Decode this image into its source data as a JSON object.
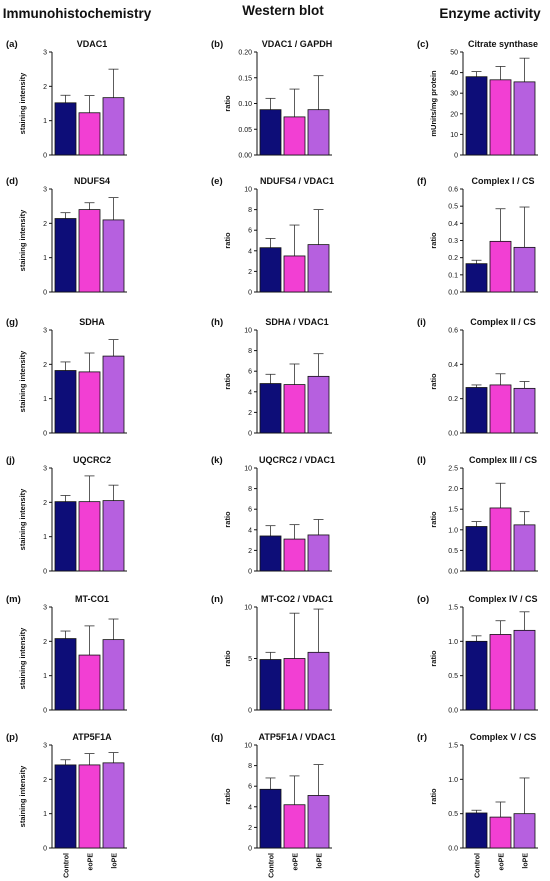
{
  "figure": {
    "columns": [
      "Immunohistochemistry",
      "Western blot",
      "Enzyme activity"
    ],
    "categories": [
      "Control",
      "eoPE",
      "loPE"
    ],
    "colors": {
      "Control": "#0d0d78",
      "eoPE": "#f23fd3",
      "loPE": "#b660df"
    }
  },
  "chart_data": [
    {
      "type": "bar",
      "panel": "(a)",
      "title": "VDAC1",
      "ylabel": "staining intensity",
      "categories": [
        "Control",
        "eoPE",
        "loPE"
      ],
      "values": [
        1.52,
        1.23,
        1.67
      ],
      "error": [
        0.22,
        0.5,
        0.83
      ],
      "ylim": [
        0,
        3
      ],
      "yticks": [
        "0",
        "1",
        "2",
        "3"
      ]
    },
    {
      "type": "bar",
      "panel": "(b)",
      "title": "VDAC1  /  GAPDH",
      "ylabel": "ratio",
      "categories": [
        "Control",
        "eoPE",
        "loPE"
      ],
      "values": [
        0.088,
        0.074,
        0.088
      ],
      "error": [
        0.022,
        0.054,
        0.066
      ],
      "ylim": [
        0,
        0.2
      ],
      "yticks": [
        "0.00",
        "0.05",
        "0.10",
        "0.15",
        "0.20"
      ]
    },
    {
      "type": "bar",
      "panel": "(c)",
      "title": "Citrate synthase",
      "ylabel": "mUnits/mg protein",
      "categories": [
        "Control",
        "eoPE",
        "loPE"
      ],
      "values": [
        38,
        36.5,
        35.5
      ],
      "error": [
        2.5,
        6.5,
        11.5
      ],
      "ylim": [
        0,
        50
      ],
      "yticks": [
        "0",
        "10",
        "20",
        "30",
        "40",
        "50"
      ]
    },
    {
      "type": "bar",
      "panel": "(d)",
      "title": "NDUFS4",
      "ylabel": "staining intensity",
      "categories": [
        "Control",
        "eoPE",
        "loPE"
      ],
      "values": [
        2.14,
        2.4,
        2.1
      ],
      "error": [
        0.17,
        0.2,
        0.65
      ],
      "ylim": [
        0,
        3
      ],
      "yticks": [
        "0",
        "1",
        "2",
        "3"
      ]
    },
    {
      "type": "bar",
      "panel": "(e)",
      "title": "NDUFS4 / VDAC1",
      "ylabel": "ratio",
      "categories": [
        "Control",
        "eoPE",
        "loPE"
      ],
      "values": [
        4.3,
        3.5,
        4.6
      ],
      "error": [
        0.9,
        3.0,
        3.4
      ],
      "ylim": [
        0,
        10
      ],
      "yticks": [
        "0",
        "2",
        "4",
        "6",
        "8",
        "10"
      ]
    },
    {
      "type": "bar",
      "panel": "(f)",
      "title": "Complex I / CS",
      "ylabel": "ratio",
      "categories": [
        "Control",
        "eoPE",
        "loPE"
      ],
      "values": [
        0.165,
        0.295,
        0.26
      ],
      "error": [
        0.02,
        0.19,
        0.235
      ],
      "ylim": [
        0,
        0.6
      ],
      "yticks": [
        "0.0",
        "0.1",
        "0.2",
        "0.3",
        "0.4",
        "0.5",
        "0.6"
      ]
    },
    {
      "type": "bar",
      "panel": "(g)",
      "title": "SDHA",
      "ylabel": "staining intensity",
      "categories": [
        "Control",
        "eoPE",
        "loPE"
      ],
      "values": [
        1.82,
        1.78,
        2.24
      ],
      "error": [
        0.25,
        0.55,
        0.48
      ],
      "ylim": [
        0,
        3
      ],
      "yticks": [
        "0",
        "1",
        "2",
        "3"
      ]
    },
    {
      "type": "bar",
      "panel": "(h)",
      "title": "SDHA / VDAC1",
      "ylabel": "ratio",
      "categories": [
        "Control",
        "eoPE",
        "loPE"
      ],
      "values": [
        4.8,
        4.7,
        5.5
      ],
      "error": [
        0.9,
        2.0,
        2.2
      ],
      "ylim": [
        0,
        10
      ],
      "yticks": [
        "0",
        "2",
        "4",
        "6",
        "8",
        "10"
      ]
    },
    {
      "type": "bar",
      "panel": "(i)",
      "title": "Complex II / CS",
      "ylabel": "ratio",
      "categories": [
        "Control",
        "eoPE",
        "loPE"
      ],
      "values": [
        0.265,
        0.28,
        0.26
      ],
      "error": [
        0.015,
        0.065,
        0.04
      ],
      "ylim": [
        0,
        0.6
      ],
      "yticks": [
        "0.0",
        "0.2",
        "0.4",
        "0.6"
      ]
    },
    {
      "type": "bar",
      "panel": "(j)",
      "title": "UQCRC2",
      "ylabel": "staining intensity",
      "categories": [
        "Control",
        "eoPE",
        "loPE"
      ],
      "values": [
        2.02,
        2.02,
        2.05
      ],
      "error": [
        0.18,
        0.75,
        0.45
      ],
      "ylim": [
        0,
        3
      ],
      "yticks": [
        "0",
        "1",
        "2",
        "3"
      ]
    },
    {
      "type": "bar",
      "panel": "(k)",
      "title": "UQCRC2 / VDAC1",
      "ylabel": "ratio",
      "categories": [
        "Control",
        "eoPE",
        "loPE"
      ],
      "values": [
        3.4,
        3.1,
        3.5
      ],
      "error": [
        1.0,
        1.4,
        1.5
      ],
      "ylim": [
        0,
        10
      ],
      "yticks": [
        "0",
        "2",
        "4",
        "6",
        "8",
        "10"
      ]
    },
    {
      "type": "bar",
      "panel": "(l)",
      "title": "Complex III / CS",
      "ylabel": "ratio",
      "categories": [
        "Control",
        "eoPE",
        "loPE"
      ],
      "values": [
        1.08,
        1.53,
        1.12
      ],
      "error": [
        0.12,
        0.6,
        0.32
      ],
      "ylim": [
        0,
        2.5
      ],
      "yticks": [
        "0.0",
        "0.5",
        "1.0",
        "1.5",
        "2.0",
        "2.5"
      ]
    },
    {
      "type": "bar",
      "panel": "(m)",
      "title": "MT-CO1",
      "ylabel": "staining intensity",
      "categories": [
        "Control",
        "eoPE",
        "loPE"
      ],
      "values": [
        2.08,
        1.6,
        2.05
      ],
      "error": [
        0.22,
        0.85,
        0.6
      ],
      "ylim": [
        0,
        3
      ],
      "yticks": [
        "0",
        "1",
        "2",
        "3"
      ]
    },
    {
      "type": "bar",
      "panel": "(n)",
      "title": "MT-CO2 / VDAC1",
      "ylabel": "ratio",
      "categories": [
        "Control",
        "eoPE",
        "loPE"
      ],
      "values": [
        4.9,
        5.0,
        5.6
      ],
      "error": [
        0.7,
        4.4,
        4.2
      ],
      "ylim": [
        0,
        10
      ],
      "yticks": [
        "0",
        "5",
        "10"
      ]
    },
    {
      "type": "bar",
      "panel": "(o)",
      "title": "Complex IV / CS",
      "ylabel": "ratio",
      "categories": [
        "Control",
        "eoPE",
        "loPE"
      ],
      "values": [
        1.0,
        1.1,
        1.16
      ],
      "error": [
        0.08,
        0.2,
        0.27
      ],
      "ylim": [
        0,
        1.5
      ],
      "yticks": [
        "0.0",
        "0.5",
        "1.0",
        "1.5"
      ]
    },
    {
      "type": "bar",
      "panel": "(p)",
      "title": "ATP5F1A",
      "ylabel": "staining intensity",
      "categories": [
        "Control",
        "eoPE",
        "loPE"
      ],
      "values": [
        2.42,
        2.42,
        2.48
      ],
      "error": [
        0.15,
        0.33,
        0.3
      ],
      "ylim": [
        0,
        3
      ],
      "yticks": [
        "0",
        "1",
        "2",
        "3"
      ]
    },
    {
      "type": "bar",
      "panel": "(q)",
      "title": "ATP5F1A / VDAC1",
      "ylabel": "ratio",
      "categories": [
        "Control",
        "eoPE",
        "loPE"
      ],
      "values": [
        5.7,
        4.2,
        5.1
      ],
      "error": [
        1.1,
        2.8,
        3.0
      ],
      "ylim": [
        0,
        10
      ],
      "yticks": [
        "0",
        "2",
        "4",
        "6",
        "8",
        "10"
      ]
    },
    {
      "type": "bar",
      "panel": "(r)",
      "title": "Complex V / CS",
      "ylabel": "ratio",
      "categories": [
        "Control",
        "eoPE",
        "loPE"
      ],
      "values": [
        0.51,
        0.45,
        0.5
      ],
      "error": [
        0.04,
        0.22,
        0.52
      ],
      "ylim": [
        0,
        1.5
      ],
      "yticks": [
        "0.0",
        "0.5",
        "1.0",
        "1.5"
      ]
    }
  ]
}
